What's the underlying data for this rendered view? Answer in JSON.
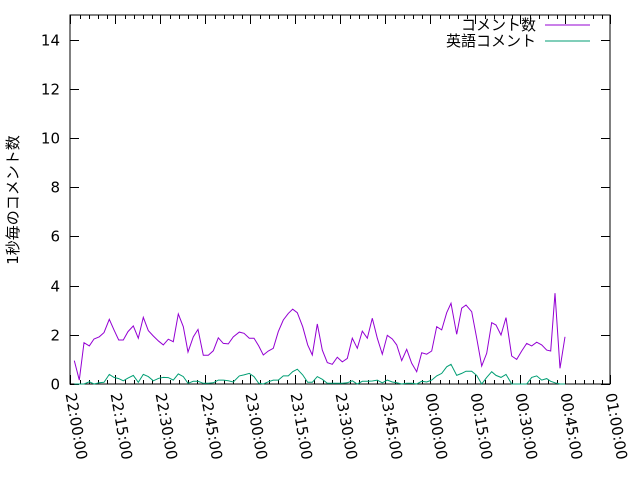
{
  "chart_data": {
    "type": "line",
    "title": "",
    "xlabel": "",
    "ylabel": "1秒毎のコメント数",
    "xlim": [
      "22:00:00",
      "01:00:00"
    ],
    "ylim": [
      0,
      15
    ],
    "x_ticks": [
      "22:00:00",
      "22:15:00",
      "22:30:00",
      "22:45:00",
      "23:00:00",
      "23:15:00",
      "23:30:00",
      "23:45:00",
      "00:00:00",
      "00:15:00",
      "00:30:00",
      "00:45:00",
      "01:00:00"
    ],
    "y_ticks": [
      "0",
      "2",
      "4",
      "6",
      "8",
      "10",
      "12",
      "14"
    ],
    "grid": false,
    "legend_position": "top-right",
    "x": [
      "22:01:26",
      "22:03:06",
      "22:04:40",
      "22:06:26",
      "22:08:00",
      "22:09:46",
      "22:11:20",
      "22:13:06",
      "22:14:40",
      "22:16:14",
      "22:17:46",
      "22:19:20",
      "22:21:06",
      "22:22:46",
      "22:24:26",
      "22:26:06",
      "22:27:46",
      "22:29:34",
      "22:31:06",
      "22:32:46",
      "22:34:26",
      "22:36:06",
      "22:37:46",
      "22:39:20",
      "22:41:06",
      "22:42:40",
      "22:44:26",
      "22:46:06",
      "22:47:46",
      "22:49:26",
      "22:51:06",
      "22:52:46",
      "22:54:26",
      "22:56:26",
      "22:58:00",
      "22:59:46",
      "23:01:20",
      "23:02:54",
      "23:04:26",
      "23:06:06",
      "23:07:46",
      "23:09:26",
      "23:11:06",
      "23:12:46",
      "23:14:14",
      "23:15:46",
      "23:17:34",
      "23:19:14",
      "23:20:46",
      "23:22:26",
      "23:24:06",
      "23:25:46",
      "23:27:26",
      "23:29:06",
      "23:30:46",
      "23:32:26",
      "23:34:06",
      "23:35:46",
      "23:37:26",
      "23:39:06",
      "23:40:46",
      "23:42:26",
      "23:44:06",
      "23:45:46",
      "23:47:26",
      "23:48:54",
      "23:50:34",
      "23:52:14",
      "23:53:54",
      "23:55:34",
      "23:57:14",
      "23:58:54",
      "00:00:34",
      "00:02:14",
      "00:03:54",
      "00:05:34",
      "00:07:00",
      "00:08:54",
      "00:10:34",
      "00:12:00",
      "00:13:54",
      "00:15:34",
      "00:17:14",
      "00:18:54",
      "00:20:34",
      "00:22:00",
      "00:23:40",
      "00:25:20",
      "00:27:14",
      "00:28:54",
      "00:30:34",
      "00:32:14",
      "00:33:54",
      "00:35:34",
      "00:37:14",
      "00:38:54",
      "00:40:14",
      "00:41:40",
      "00:43:20",
      "00:45:00"
    ],
    "series": [
      {
        "name": "コメント数",
        "color": "#9400d3",
        "values": [
          0.95,
          0.16,
          1.68,
          1.55,
          1.83,
          1.92,
          2.09,
          2.63,
          2.2,
          1.79,
          1.79,
          2.13,
          2.36,
          1.86,
          2.71,
          2.17,
          1.95,
          1.74,
          1.59,
          1.82,
          1.72,
          2.85,
          2.33,
          1.3,
          1.92,
          2.22,
          1.17,
          1.17,
          1.35,
          1.88,
          1.65,
          1.63,
          1.92,
          2.11,
          2.06,
          1.86,
          1.86,
          1.55,
          1.18,
          1.34,
          1.45,
          2.13,
          2.6,
          2.87,
          3.04,
          2.9,
          2.33,
          1.59,
          1.18,
          2.44,
          1.38,
          0.87,
          0.8,
          1.09,
          0.9,
          1.04,
          1.86,
          1.45,
          2.15,
          1.86,
          2.67,
          1.86,
          1.21,
          1.98,
          1.83,
          1.59,
          0.95,
          1.41,
          0.84,
          0.5,
          1.27,
          1.21,
          1.34,
          2.33,
          2.2,
          2.9,
          3.28,
          2.02,
          3.08,
          3.21,
          2.94,
          1.86,
          0.73,
          1.25,
          2.49,
          2.4,
          1.99,
          2.7,
          1.14,
          1.0,
          1.34,
          1.65,
          1.55,
          1.7,
          1.59,
          1.38,
          1.34,
          3.69,
          0.64,
          1.92
        ]
      },
      {
        "name": "英語コメント",
        "color": "#009e73",
        "values": [
          0,
          0,
          0,
          0.09,
          0,
          0.05,
          0.07,
          0.39,
          0.27,
          0.22,
          0.13,
          0.24,
          0.35,
          0.07,
          0.39,
          0.3,
          0.13,
          0.23,
          0.27,
          0.26,
          0.16,
          0.41,
          0.3,
          0.03,
          0.11,
          0.11,
          0.03,
          0.03,
          0.05,
          0.16,
          0.16,
          0.13,
          0.08,
          0.33,
          0.37,
          0.43,
          0.3,
          0.03,
          0,
          0.09,
          0.16,
          0.16,
          0.33,
          0.33,
          0.5,
          0.6,
          0.37,
          0.07,
          0.07,
          0.3,
          0.19,
          0.03,
          0.03,
          0.03,
          0.03,
          0.05,
          0.13,
          0,
          0.11,
          0.11,
          0.12,
          0.16,
          0.05,
          0.16,
          0.08,
          0.05,
          0,
          0.03,
          0.03,
          0,
          0.11,
          0.08,
          0.16,
          0.33,
          0.43,
          0.7,
          0.8,
          0.35,
          0.43,
          0.52,
          0.52,
          0.35,
          0,
          0.27,
          0.5,
          0.35,
          0.27,
          0.39,
          0,
          0,
          0,
          0,
          0.27,
          0.33,
          0.16,
          0.22,
          0.11,
          0.05,
          0,
          0
        ]
      }
    ]
  }
}
